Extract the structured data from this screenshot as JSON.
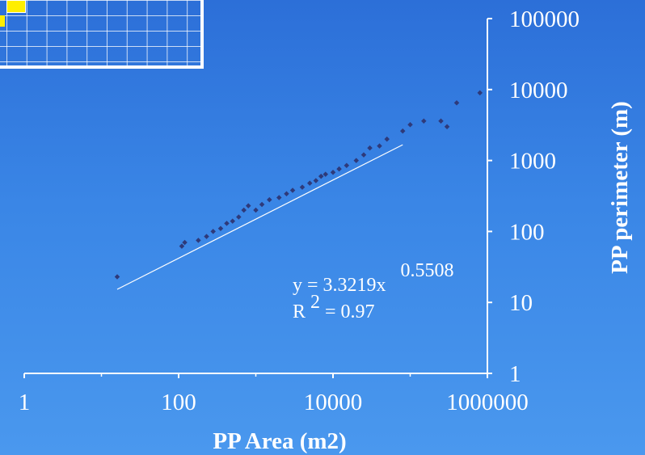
{
  "chart_data": {
    "type": "scatter",
    "title": "",
    "xlabel": "PP Area (m2)",
    "ylabel": "PP perimeter (m)",
    "x_scale": "log",
    "y_scale": "log",
    "xlim": [
      1,
      1000000
    ],
    "ylim": [
      1,
      100000
    ],
    "x_ticks": [
      "1",
      "100",
      "10000",
      "1000000"
    ],
    "y_ticks": [
      "1",
      "10",
      "100",
      "1000",
      "10000",
      "100000"
    ],
    "grid": false,
    "marker_color": "#2e3a7a",
    "trendline_color": "#ffffff",
    "trendline": {
      "type": "power",
      "a": 3.3219,
      "b": 0.5508,
      "x_range": [
        16,
        80000
      ],
      "equation_prefix": "y = 3.3219x",
      "equation_exponent": "0.5508",
      "r2_prefix": "R",
      "r2_superscript": "2",
      "r2_value": "= 0.97"
    },
    "sample_points": [
      [
        16,
        23
      ],
      [
        110,
        62
      ],
      [
        120,
        70
      ],
      [
        180,
        75
      ],
      [
        230,
        85
      ],
      [
        280,
        100
      ],
      [
        350,
        110
      ],
      [
        420,
        130
      ],
      [
        500,
        140
      ],
      [
        600,
        160
      ],
      [
        700,
        200
      ],
      [
        800,
        230
      ],
      [
        1000,
        200
      ],
      [
        1200,
        240
      ],
      [
        1500,
        280
      ],
      [
        2000,
        300
      ],
      [
        2500,
        340
      ],
      [
        3000,
        380
      ],
      [
        4000,
        420
      ],
      [
        5000,
        480
      ],
      [
        6000,
        520
      ],
      [
        7000,
        600
      ],
      [
        8000,
        640
      ],
      [
        10000,
        680
      ],
      [
        12000,
        760
      ],
      [
        15000,
        850
      ],
      [
        20000,
        1000
      ],
      [
        25000,
        1200
      ],
      [
        30000,
        1500
      ],
      [
        40000,
        1600
      ],
      [
        50000,
        2000
      ],
      [
        80000,
        2600
      ],
      [
        100000,
        3200
      ],
      [
        150000,
        3600
      ],
      [
        250000,
        3600
      ],
      [
        300000,
        3000
      ],
      [
        400000,
        6500
      ],
      [
        800000,
        9000
      ]
    ]
  }
}
